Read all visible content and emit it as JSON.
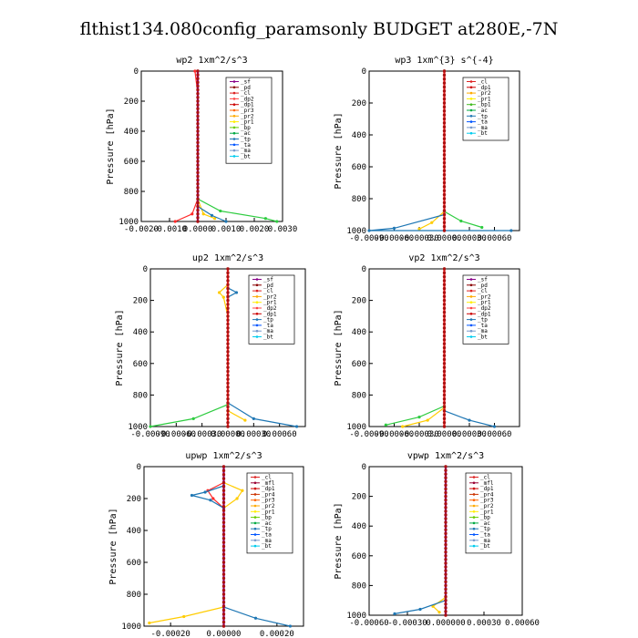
{
  "title": "flthist134.080config_paramsonly  BUDGET at280E,-7N",
  "chart_data": [
    {
      "type": "line",
      "title": "wp2   1xm^2/s^3",
      "ylabel": "Pressure [hPa]",
      "xlim": [
        -0.002,
        0.003
      ],
      "ylim": [
        1000,
        0
      ],
      "xticks": [
        "-0.0020",
        "-0.0010",
        "0.0000",
        "0.0010",
        "0.0020",
        "0.0030"
      ],
      "yticks": [
        "0",
        "200",
        "400",
        "600",
        "800",
        "1000"
      ],
      "legend": [
        "_sf",
        "_pd",
        "_cl",
        "_dp2",
        "_dp1",
        "_pr3",
        "_pr2",
        "_pr1",
        "_bp",
        "_ac",
        "_tp",
        "_ta",
        "_ma",
        "_bt"
      ],
      "series": [
        {
          "name": "_dp1",
          "color": "#ff2a2a",
          "values": [
            [
              -0.0001,
              0
            ],
            [
              0,
              150
            ],
            [
              0,
              850
            ],
            [
              -0.0002,
              950
            ],
            [
              -0.0008,
              1000
            ]
          ]
        },
        {
          "name": "_pr2",
          "color": "#ffcc00",
          "values": [
            [
              0,
              0
            ],
            [
              0,
              850
            ],
            [
              0.0002,
              950
            ],
            [
              0.0006,
              980
            ]
          ]
        },
        {
          "name": "_bp",
          "color": "#2ecc40",
          "values": [
            [
              0,
              0
            ],
            [
              0,
              850
            ],
            [
              0.0008,
              930
            ],
            [
              0.0024,
              980
            ],
            [
              0.0028,
              1000
            ]
          ]
        },
        {
          "name": "_tp",
          "color": "#1f77b4",
          "values": [
            [
              0,
              0
            ],
            [
              0,
              900
            ],
            [
              0.0005,
              960
            ],
            [
              0.001,
              1000
            ]
          ]
        },
        {
          "name": "_bt",
          "color": "#880088",
          "values": [
            [
              0,
              0
            ],
            [
              0,
              1000
            ]
          ]
        }
      ]
    },
    {
      "type": "line",
      "title": "wp3   1xm^{3} s^{-4}",
      "ylabel": "Pressure [hPa]",
      "xlim": [
        -0.0009,
        0.0009
      ],
      "ylim": [
        1000,
        0
      ],
      "xticks": [
        "-0.00090",
        "-0.00060",
        "-0.00030",
        "0.00000",
        "0.00030",
        "0.00060"
      ],
      "yticks": [
        "0",
        "200",
        "400",
        "600",
        "800",
        "1000"
      ],
      "legend": [
        "_cl",
        "_dp1",
        "_pr2",
        "_pr1",
        "_bp1",
        "_ac",
        "_tp",
        "_ta",
        "_ma",
        "_bt"
      ],
      "series": [
        {
          "name": "_pr2",
          "color": "#ffcc00",
          "values": [
            [
              0,
              0
            ],
            [
              0,
              880
            ],
            [
              -0.00015,
              950
            ],
            [
              -0.0003,
              990
            ]
          ]
        },
        {
          "name": "_bp1",
          "color": "#2ecc40",
          "values": [
            [
              0,
              0
            ],
            [
              0,
              880
            ],
            [
              0.0002,
              940
            ],
            [
              0.00045,
              980
            ]
          ]
        },
        {
          "name": "_tp",
          "color": "#1f77b4",
          "values": [
            [
              0,
              0
            ],
            [
              0,
              900
            ],
            [
              -0.0006,
              985
            ],
            [
              -0.0009,
              1000
            ],
            [
              0.0008,
              1000
            ]
          ]
        },
        {
          "name": "_dp1",
          "color": "#ff2a2a",
          "values": [
            [
              0,
              0
            ],
            [
              0,
              1000
            ]
          ]
        }
      ]
    },
    {
      "type": "line",
      "title": "up2   1xm^2/s^3",
      "ylabel": "Pressure [hPa]",
      "xlim": [
        -0.0009,
        0.0009
      ],
      "ylim": [
        1000,
        0
      ],
      "xticks": [
        "-0.00090",
        "-0.00060",
        "-0.00030",
        "0.00000",
        "0.00030",
        "0.00060"
      ],
      "yticks": [
        "0",
        "200",
        "400",
        "600",
        "800",
        "1000"
      ],
      "legend": [
        "_sf",
        "_pd",
        "_cl",
        "_pr2",
        "_pr1",
        "_dp2",
        "_dp1",
        "_tp",
        "_ta",
        "_ma",
        "_bt"
      ],
      "series": [
        {
          "name": "_pr2",
          "color": "#ffcc00",
          "values": [
            [
              0,
              100
            ],
            [
              -0.0001,
              150
            ],
            [
              -5e-05,
              180
            ],
            [
              0,
              300
            ],
            [
              0,
              900
            ],
            [
              0.0002,
              960
            ]
          ]
        },
        {
          "name": "_tp",
          "color": "#1f77b4",
          "values": [
            [
              0,
              120
            ],
            [
              0.0001,
              150
            ],
            [
              0,
              180
            ],
            [
              0,
              850
            ],
            [
              0.0003,
              950
            ],
            [
              0.0008,
              1000
            ]
          ]
        },
        {
          "name": "_dp2",
          "color": "#2ecc40",
          "values": [
            [
              0,
              0
            ],
            [
              0,
              860
            ],
            [
              -0.0004,
              950
            ],
            [
              -0.0009,
              1000
            ]
          ]
        },
        {
          "name": "_cl",
          "color": "#ff2a2a",
          "values": [
            [
              0,
              0
            ],
            [
              0,
              1000
            ]
          ]
        }
      ]
    },
    {
      "type": "line",
      "title": "vp2   1xm^2/s^3",
      "ylabel": "Pressure [hPa]",
      "xlim": [
        -0.0009,
        0.0009
      ],
      "ylim": [
        1000,
        0
      ],
      "xticks": [
        "-0.00090",
        "-0.00060",
        "-0.00030",
        "0.00000",
        "0.00030",
        "0.00060"
      ],
      "yticks": [
        "0",
        "200",
        "400",
        "600",
        "800",
        "1000"
      ],
      "legend": [
        "_sf",
        "_pd",
        "_cl",
        "_pr2",
        "_pr1",
        "_dp2",
        "_dp1",
        "_tp",
        "_ta",
        "_ma",
        "_bt"
      ],
      "series": [
        {
          "name": "_pr2",
          "color": "#ffcc00",
          "values": [
            [
              0,
              0
            ],
            [
              0,
              880
            ],
            [
              -0.0002,
              960
            ],
            [
              -0.0005,
              1000
            ]
          ]
        },
        {
          "name": "_dp2",
          "color": "#2ecc40",
          "values": [
            [
              0,
              0
            ],
            [
              0,
              870
            ],
            [
              -0.0003,
              940
            ],
            [
              -0.0007,
              990
            ]
          ]
        },
        {
          "name": "_tp",
          "color": "#1f77b4",
          "values": [
            [
              0,
              0
            ],
            [
              0,
              900
            ],
            [
              0.0003,
              960
            ],
            [
              0.0006,
              1000
            ]
          ]
        },
        {
          "name": "_cl",
          "color": "#ff2a2a",
          "values": [
            [
              0,
              0
            ],
            [
              0,
              1000
            ]
          ]
        }
      ]
    },
    {
      "type": "line",
      "title": "upwp   1xm^2/s^3",
      "ylabel": "Pressure [hPa]",
      "xlim": [
        -0.0003,
        0.0003
      ],
      "ylim": [
        1000,
        0
      ],
      "xticks": [
        "-0.00020",
        "0.00000",
        "0.00020"
      ],
      "yticks": [
        "0",
        "200",
        "400",
        "600",
        "800",
        "1000"
      ],
      "legend": [
        "_cl",
        "_mfl",
        "_dp1",
        "_pr4",
        "_pr3",
        "_pr2",
        "_pr1",
        "_bp",
        "_ac",
        "_tp",
        "_ta",
        "_ma",
        "_bt"
      ],
      "series": [
        {
          "name": "_dp1",
          "color": "#ff2a2a",
          "values": [
            [
              0,
              100
            ],
            [
              -6e-05,
              150
            ],
            [
              -4e-05,
              200
            ],
            [
              0,
              260
            ],
            [
              0,
              1000
            ]
          ]
        },
        {
          "name": "_pr2",
          "color": "#ffcc00",
          "values": [
            [
              0,
              100
            ],
            [
              7e-05,
              150
            ],
            [
              5e-05,
              200
            ],
            [
              0,
              260
            ],
            [
              0,
              880
            ],
            [
              -0.00015,
              940
            ],
            [
              -0.00028,
              980
            ]
          ]
        },
        {
          "name": "_tp",
          "color": "#1f77b4",
          "values": [
            [
              0,
              120
            ],
            [
              -7e-05,
              160
            ],
            [
              -0.00012,
              180
            ],
            [
              -5e-05,
              210
            ],
            [
              0,
              260
            ],
            [
              0,
              880
            ],
            [
              0.00012,
              950
            ],
            [
              0.00025,
              1000
            ]
          ]
        },
        {
          "name": "_bt",
          "color": "#880088",
          "values": [
            [
              0,
              0
            ],
            [
              0,
              1000
            ]
          ]
        }
      ]
    },
    {
      "type": "line",
      "title": "vpwp   1xm^2/s^3",
      "ylabel": "Pressure [hPa]",
      "xlim": [
        -0.0006,
        0.0006
      ],
      "ylim": [
        1000,
        0
      ],
      "xticks": [
        "-0.00060",
        "-0.00030",
        "0.000000",
        "0.00030",
        "0.00060"
      ],
      "yticks": [
        "0",
        "200",
        "400",
        "600",
        "800",
        "1000"
      ],
      "legend": [
        "_cl",
        "_mfl",
        "_dp1",
        "_pr4",
        "_pr3",
        "_pr2",
        "_pr1",
        "_bp",
        "_ac",
        "_tp",
        "_ta",
        "_ma",
        "_bt"
      ],
      "series": [
        {
          "name": "_pr2",
          "color": "#ffcc00",
          "values": [
            [
              0,
              0
            ],
            [
              0,
              880
            ],
            [
              -0.0001,
              940
            ],
            [
              -5e-05,
              980
            ]
          ]
        },
        {
          "name": "_tp",
          "color": "#1f77b4",
          "values": [
            [
              0,
              0
            ],
            [
              0,
              900
            ],
            [
              -0.0002,
              960
            ],
            [
              -0.0004,
              990
            ]
          ]
        },
        {
          "name": "_dp1",
          "color": "#ff2a2a",
          "values": [
            [
              0,
              0
            ],
            [
              0,
              1000
            ]
          ]
        },
        {
          "name": "_bt",
          "color": "#880088",
          "values": [
            [
              0,
              0
            ],
            [
              0,
              1000
            ]
          ]
        }
      ]
    }
  ],
  "legend_colors": {
    "_sf": "#880088",
    "_pd": "#8b0000",
    "_cl": "#dd2222",
    "_mfl": "#990033",
    "_dp2": "#ff4444",
    "_dp1": "#cc0000",
    "_pr4": "#cc3300",
    "_pr3": "#ff6600",
    "_pr2": "#ffaa00",
    "_pr1": "#ffee00",
    "_bp": "#66cc00",
    "_bp1": "#44bb22",
    "_ac": "#00aa44",
    "_tp": "#1f77b4",
    "_ta": "#0055ff",
    "_ma": "#7799cc",
    "_bt": "#00ccee"
  }
}
